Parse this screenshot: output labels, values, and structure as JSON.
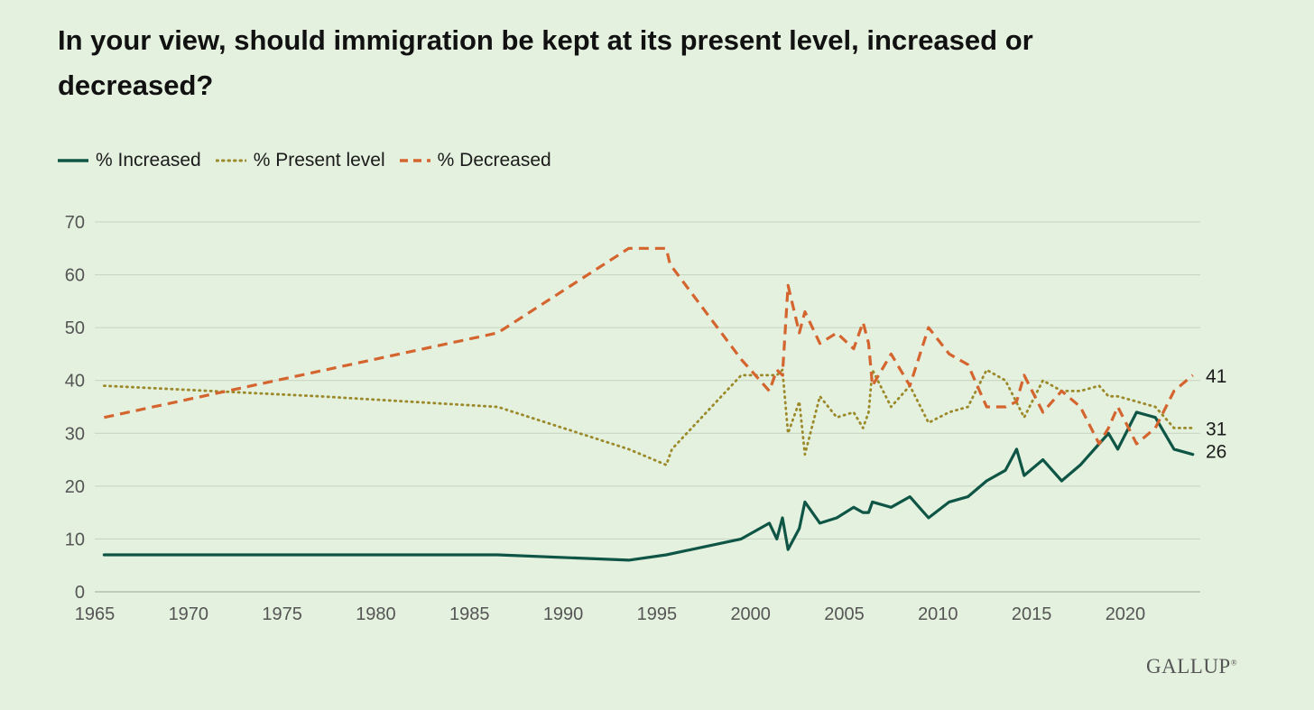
{
  "title": "In your view, should immigration be kept at its present level, increased or decreased?",
  "brand": "GALLUP",
  "brand_mark": "®",
  "colors": {
    "background": "#e4f1df",
    "increased": "#0e5546",
    "present": "#9c8a2a",
    "decreased": "#d4652f",
    "grid": "#c3d3bf",
    "axis_text": "#555555"
  },
  "chart_data": {
    "type": "line",
    "title": "In your view, should immigration be kept at its present level, increased or decreased?",
    "xlabel": "",
    "ylabel": "",
    "xlim": [
      1965,
      2024
    ],
    "ylim": [
      0,
      70
    ],
    "x_ticks": [
      1965,
      1970,
      1975,
      1980,
      1985,
      1990,
      1995,
      2000,
      2005,
      2010,
      2015,
      2020
    ],
    "y_ticks": [
      0,
      10,
      20,
      30,
      40,
      50,
      60,
      70
    ],
    "grid": true,
    "legend_position": "top-left",
    "end_labels": [
      "41",
      "31",
      "26"
    ],
    "series": [
      {
        "name": "% Increased",
        "style": "solid",
        "points": [
          [
            1965.5,
            7
          ],
          [
            1986.5,
            7
          ],
          [
            1993.5,
            6
          ],
          [
            1995.5,
            7
          ],
          [
            1999.5,
            10
          ],
          [
            2001,
            13
          ],
          [
            2001.4,
            10
          ],
          [
            2001.7,
            14
          ],
          [
            2002,
            8
          ],
          [
            2002.6,
            12
          ],
          [
            2002.9,
            17
          ],
          [
            2003.7,
            13
          ],
          [
            2004.6,
            14
          ],
          [
            2005.5,
            16
          ],
          [
            2006,
            15
          ],
          [
            2006.3,
            15
          ],
          [
            2006.5,
            17
          ],
          [
            2007.5,
            16
          ],
          [
            2008.5,
            18
          ],
          [
            2009.5,
            14
          ],
          [
            2010.6,
            17
          ],
          [
            2011.6,
            18
          ],
          [
            2012.6,
            21
          ],
          [
            2013.6,
            23
          ],
          [
            2014.2,
            27
          ],
          [
            2014.6,
            22
          ],
          [
            2015.6,
            25
          ],
          [
            2016.6,
            21
          ],
          [
            2017.6,
            24
          ],
          [
            2018.6,
            28
          ],
          [
            2019.1,
            30
          ],
          [
            2019.6,
            27
          ],
          [
            2020.6,
            34
          ],
          [
            2021.6,
            33
          ],
          [
            2022.6,
            27
          ],
          [
            2023.6,
            26
          ]
        ]
      },
      {
        "name": "% Present level",
        "style": "dotted",
        "points": [
          [
            1965.5,
            39
          ],
          [
            1977,
            37
          ],
          [
            1986.5,
            35
          ],
          [
            1993.5,
            27
          ],
          [
            1995.5,
            24
          ],
          [
            1995.8,
            27
          ],
          [
            1999.5,
            41
          ],
          [
            2001,
            41
          ],
          [
            2001.4,
            41
          ],
          [
            2001.7,
            42
          ],
          [
            2002,
            30
          ],
          [
            2002.6,
            36
          ],
          [
            2002.9,
            26
          ],
          [
            2003.7,
            37
          ],
          [
            2004.6,
            33
          ],
          [
            2005.5,
            34
          ],
          [
            2006,
            31
          ],
          [
            2006.3,
            34
          ],
          [
            2006.5,
            42
          ],
          [
            2007.5,
            35
          ],
          [
            2008.5,
            39
          ],
          [
            2009.5,
            32
          ],
          [
            2010.6,
            34
          ],
          [
            2011.6,
            35
          ],
          [
            2012.6,
            42
          ],
          [
            2013.6,
            40
          ],
          [
            2014.6,
            33
          ],
          [
            2015.6,
            40
          ],
          [
            2016.6,
            38
          ],
          [
            2017.6,
            38
          ],
          [
            2018.6,
            39
          ],
          [
            2019.1,
            37
          ],
          [
            2019.6,
            37
          ],
          [
            2020.6,
            36
          ],
          [
            2021.6,
            35
          ],
          [
            2022.6,
            31
          ],
          [
            2023.6,
            31
          ]
        ]
      },
      {
        "name": "% Decreased",
        "style": "dashed",
        "points": [
          [
            1965.5,
            33
          ],
          [
            1986.5,
            49
          ],
          [
            1993.5,
            65
          ],
          [
            1995.5,
            65
          ],
          [
            1995.7,
            62
          ],
          [
            1999.5,
            44
          ],
          [
            2001,
            38
          ],
          [
            2001.4,
            42
          ],
          [
            2001.7,
            41
          ],
          [
            2002,
            58
          ],
          [
            2002.6,
            49
          ],
          [
            2002.9,
            53
          ],
          [
            2003.7,
            47
          ],
          [
            2004.6,
            49
          ],
          [
            2005.5,
            46
          ],
          [
            2006,
            51
          ],
          [
            2006.3,
            47
          ],
          [
            2006.5,
            39
          ],
          [
            2007.5,
            45
          ],
          [
            2008.5,
            39
          ],
          [
            2009.5,
            50
          ],
          [
            2010.6,
            45
          ],
          [
            2011.6,
            43
          ],
          [
            2012.6,
            35
          ],
          [
            2013.6,
            35
          ],
          [
            2014.2,
            36
          ],
          [
            2014.6,
            41
          ],
          [
            2015.6,
            34
          ],
          [
            2016.6,
            38
          ],
          [
            2017.6,
            35
          ],
          [
            2018.6,
            28
          ],
          [
            2019.1,
            31
          ],
          [
            2019.6,
            35
          ],
          [
            2020.6,
            28
          ],
          [
            2021.6,
            31
          ],
          [
            2022.6,
            38
          ],
          [
            2023.6,
            41
          ]
        ]
      }
    ]
  }
}
